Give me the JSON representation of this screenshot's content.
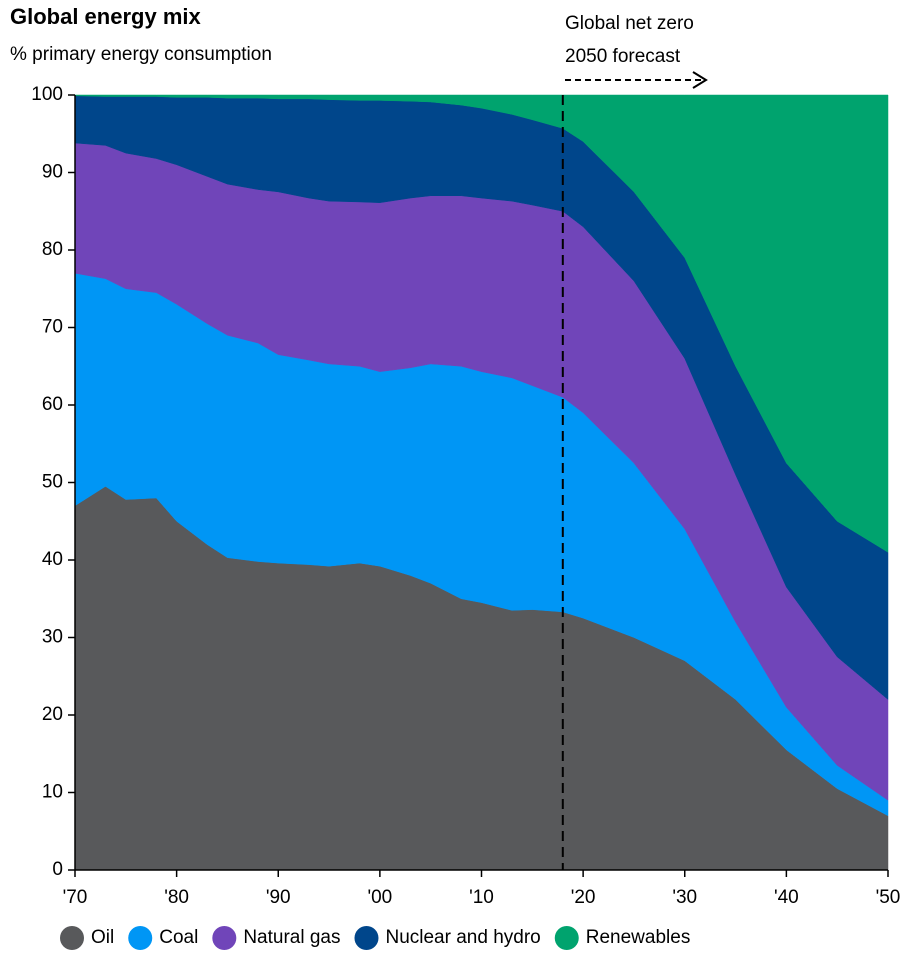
{
  "chart_data": {
    "type": "stacked_area",
    "title": "Global energy mix",
    "subtitle": "% primary energy consumption",
    "annotation": [
      "Global net zero",
      "2050 forecast"
    ],
    "forecast_line": 2018,
    "x": [
      1970,
      1973,
      1975,
      1978,
      1980,
      1983,
      1985,
      1988,
      1990,
      1993,
      1995,
      1998,
      2000,
      2003,
      2005,
      2008,
      2010,
      2013,
      2015,
      2018,
      2020,
      2025,
      2030,
      2035,
      2040,
      2045,
      2050
    ],
    "series": [
      {
        "name": "Oil",
        "color": "#58595b",
        "values": [
          47,
          49.5,
          47.8,
          48,
          45,
          42,
          40.3,
          39.8,
          39.6,
          39.4,
          39.2,
          39.6,
          39.2,
          38,
          37,
          35,
          34.5,
          33.5,
          33.6,
          33.3,
          32.5,
          30,
          27,
          22,
          15.5,
          10.5,
          7
        ]
      },
      {
        "name": "Coal",
        "color": "#0096f5",
        "values": [
          30,
          26.8,
          27.2,
          26.5,
          28,
          28.5,
          28.7,
          28.2,
          26.9,
          26.4,
          26.1,
          25.4,
          25.1,
          26.8,
          28.3,
          30,
          29.8,
          30,
          28.9,
          27.7,
          26.5,
          22.5,
          17,
          10,
          5.5,
          3,
          2
        ]
      },
      {
        "name": "Natural gas",
        "color": "#7045b9",
        "values": [
          16.8,
          17.2,
          17.5,
          17.3,
          18,
          19,
          19.5,
          19.8,
          21,
          20.9,
          21,
          21.2,
          21.8,
          21.9,
          21.7,
          22,
          22.4,
          22.8,
          23.3,
          24,
          24,
          23.5,
          22,
          19,
          15.5,
          14,
          13
        ]
      },
      {
        "name": "Nuclear and hydro",
        "color": "#00468b",
        "values": [
          6.1,
          6.3,
          7.3,
          8,
          8.7,
          10.2,
          11.1,
          11.8,
          12,
          12.8,
          13.1,
          13.1,
          13.2,
          12.5,
          12.1,
          11.7,
          11.6,
          11.2,
          11,
          10.7,
          11,
          11.5,
          13,
          14,
          16,
          17.5,
          19
        ]
      },
      {
        "name": "Renewables",
        "color": "#00a36e",
        "values": [
          0.1,
          0.2,
          0.2,
          0.2,
          0.3,
          0.3,
          0.4,
          0.4,
          0.5,
          0.5,
          0.6,
          0.7,
          0.7,
          0.8,
          0.9,
          1.3,
          1.7,
          2.5,
          3.2,
          4.3,
          6,
          12.5,
          21,
          35,
          47.5,
          55,
          59
        ]
      }
    ],
    "xlim": [
      1970,
      2050
    ],
    "xticks": [
      {
        "value": 1970,
        "label": "'70"
      },
      {
        "value": 1980,
        "label": "'80"
      },
      {
        "value": 1990,
        "label": "'90"
      },
      {
        "value": 2000,
        "label": "'00"
      },
      {
        "value": 2010,
        "label": "'10"
      },
      {
        "value": 2020,
        "label": "'20"
      },
      {
        "value": 2030,
        "label": "'30"
      },
      {
        "value": 2040,
        "label": "'40"
      },
      {
        "value": 2050,
        "label": "'50"
      }
    ],
    "ylim": [
      0,
      100
    ],
    "yticks": [
      0,
      10,
      20,
      30,
      40,
      50,
      60,
      70,
      80,
      90,
      100
    ],
    "legend": "bottom"
  }
}
